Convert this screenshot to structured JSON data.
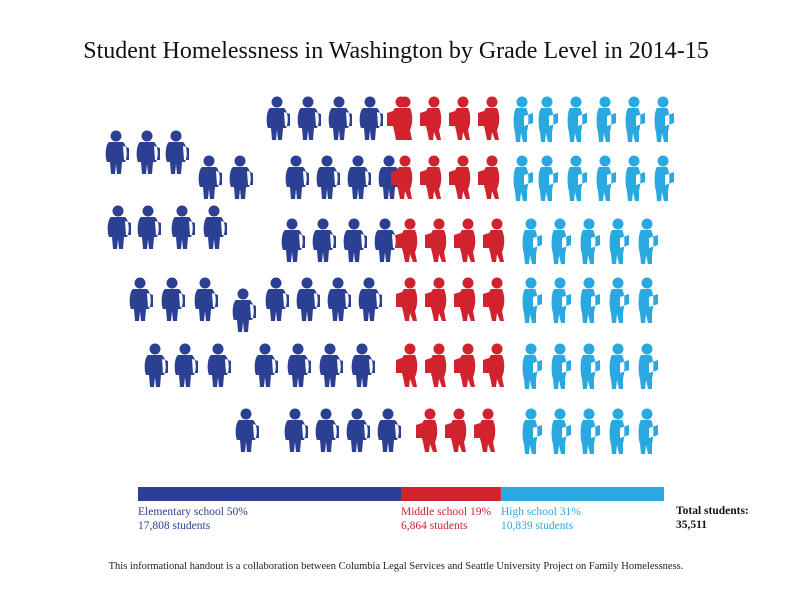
{
  "title": "Student Homelessness in Washington by Grade Level in 2014-15",
  "chart_data": {
    "type": "bar",
    "categories": [
      "Elementary school",
      "Middle school",
      "High school"
    ],
    "percents": [
      50,
      19,
      31
    ],
    "students": [
      17808,
      6864,
      10839
    ],
    "labels": [
      {
        "pct": "Elementary school 50%",
        "count": "17,808 students"
      },
      {
        "pct": "Middle school 19%",
        "count": "6,864 students"
      },
      {
        "pct": "High school 31%",
        "count": "10,839 students"
      }
    ],
    "colors": [
      "#2b3f93",
      "#d1232e",
      "#2aa9e0"
    ],
    "total_label": "Total students:",
    "total_value": "35,511"
  },
  "footer": "This informational handout is a collaboration between Columbia Legal Services and Seattle University Project on Family Homelessness."
}
